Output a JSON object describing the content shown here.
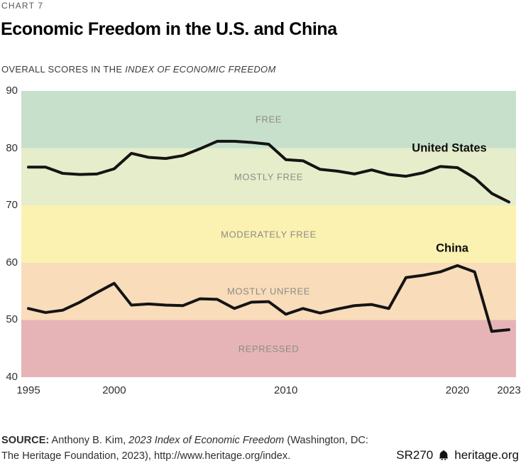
{
  "header": {
    "kicker": "CHART 7",
    "title": "Economic Freedom in the U.S. and China",
    "subtitle_plain": "OVERALL SCORES IN THE ",
    "subtitle_italic": "INDEX OF ECONOMIC FREEDOM"
  },
  "chart_data": {
    "type": "line",
    "title": "Economic Freedom in the U.S. and China",
    "subtitle": "Overall scores in the Index of Economic Freedom",
    "x": [
      1995,
      1996,
      1997,
      1998,
      1999,
      2000,
      2001,
      2002,
      2003,
      2004,
      2005,
      2006,
      2007,
      2008,
      2009,
      2010,
      2011,
      2012,
      2013,
      2014,
      2015,
      2016,
      2017,
      2018,
      2019,
      2020,
      2021,
      2022,
      2023
    ],
    "series": [
      {
        "name": "United States",
        "color": "#141414",
        "values": [
          76.7,
          76.7,
          75.6,
          75.4,
          75.5,
          76.4,
          79.1,
          78.4,
          78.2,
          78.7,
          79.9,
          81.2,
          81.2,
          81.0,
          80.7,
          78.0,
          77.8,
          76.3,
          76.0,
          75.5,
          76.2,
          75.4,
          75.1,
          75.7,
          76.8,
          76.6,
          74.8,
          72.1,
          70.6
        ]
      },
      {
        "name": "China",
        "color": "#141414",
        "values": [
          52.0,
          51.3,
          51.7,
          53.1,
          54.8,
          56.4,
          52.6,
          52.8,
          52.6,
          52.5,
          53.7,
          53.6,
          52.0,
          53.1,
          53.2,
          51.0,
          52.0,
          51.2,
          51.9,
          52.5,
          52.7,
          52.0,
          57.4,
          57.8,
          58.4,
          59.5,
          58.4,
          48.0,
          48.3
        ]
      }
    ],
    "zones": [
      {
        "label": "FREE",
        "from": 80,
        "to": 90,
        "color": "#c7e0cb"
      },
      {
        "label": "MOSTLY FREE",
        "from": 70,
        "to": 80,
        "color": "#e5edca"
      },
      {
        "label": "MODERATELY FREE",
        "from": 60,
        "to": 70,
        "color": "#fbf1b1"
      },
      {
        "label": "MOSTLY UNFREE",
        "from": 50,
        "to": 60,
        "color": "#f9dcba"
      },
      {
        "label": "REPRESSED",
        "from": 40,
        "to": 50,
        "color": "#e6b4b7"
      }
    ],
    "ylim": [
      40,
      90
    ],
    "yticks": [
      90,
      80,
      70,
      60,
      50,
      40
    ],
    "xticks": [
      1995,
      2000,
      2010,
      2020,
      2023
    ],
    "grid": false,
    "legend": "inline-labels",
    "line_width": 4
  },
  "source": {
    "label": "SOURCE:",
    "line1_text": " Anthony B. Kim, ",
    "line1_italic": "2023 Index of Economic Freedom",
    "line1_tail": " (Washington, DC:",
    "line2": "The Heritage Foundation, 2023), http://www.heritage.org/index."
  },
  "footer": {
    "report_id": "SR270",
    "brand": "heritage.org",
    "icon": "liberty-bell-icon"
  }
}
